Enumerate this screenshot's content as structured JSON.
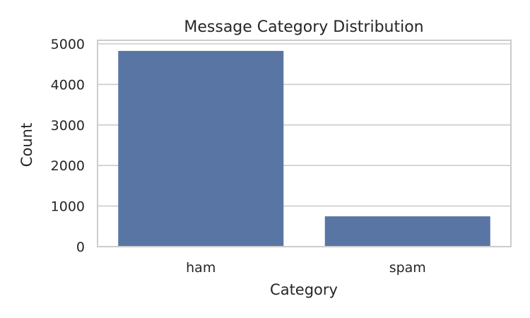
{
  "chart_data": {
    "type": "bar",
    "title": "Message Category Distribution",
    "xlabel": "Category",
    "ylabel": "Count",
    "categories": [
      "ham",
      "spam"
    ],
    "values": [
      4825,
      747
    ],
    "ylim": [
      0,
      5000
    ],
    "yticks": [
      0,
      1000,
      2000,
      3000,
      4000,
      5000
    ],
    "grid": true,
    "bar_color": "#5975a4",
    "grid_color": "#cccccc",
    "text_color": "#262626"
  }
}
